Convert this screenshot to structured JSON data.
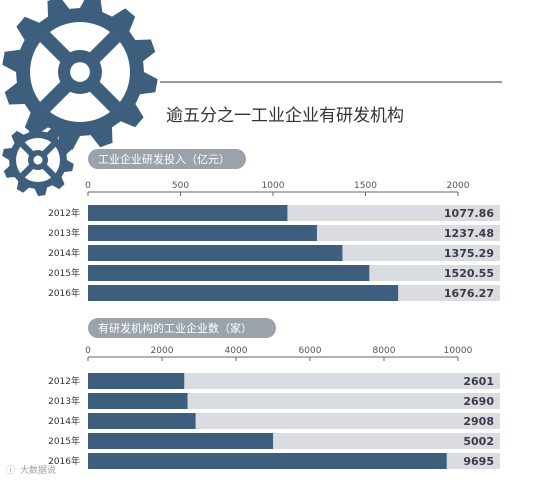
{
  "header": {
    "title": "逾五分之一工业企业有研发机构"
  },
  "colors": {
    "bar": "#3d5f7d",
    "gear": "#3d5f7d",
    "pill": "#9aa3ab",
    "track": "#d9dde1"
  },
  "watermark": {
    "text": "大数据说"
  },
  "chart_data": [
    {
      "type": "bar",
      "orientation": "horizontal",
      "title": "工业企业研发投入（亿元）",
      "categories": [
        "2012年",
        "2013年",
        "2014年",
        "2015年",
        "2016年"
      ],
      "values": [
        1077.86,
        1237.48,
        1375.29,
        1520.55,
        1676.27
      ],
      "value_labels": [
        "1077.86",
        "1237.48",
        "1375.29",
        "1520.55",
        "1676.27"
      ],
      "ticks": [
        0,
        500,
        1000,
        1500,
        2000
      ],
      "xlim": [
        0,
        2000
      ],
      "grid": false,
      "legend": "none"
    },
    {
      "type": "bar",
      "orientation": "horizontal",
      "title": "有研发机构的工业企业数（家）",
      "categories": [
        "2012年",
        "2013年",
        "2014年",
        "2015年",
        "2016年"
      ],
      "values": [
        2601,
        2690,
        2908,
        5002,
        9695
      ],
      "value_labels": [
        "2601",
        "2690",
        "2908",
        "5002",
        "9695"
      ],
      "ticks": [
        0,
        2000,
        4000,
        6000,
        8000,
        10000
      ],
      "xlim": [
        0,
        10000
      ],
      "grid": false,
      "legend": "none"
    }
  ]
}
